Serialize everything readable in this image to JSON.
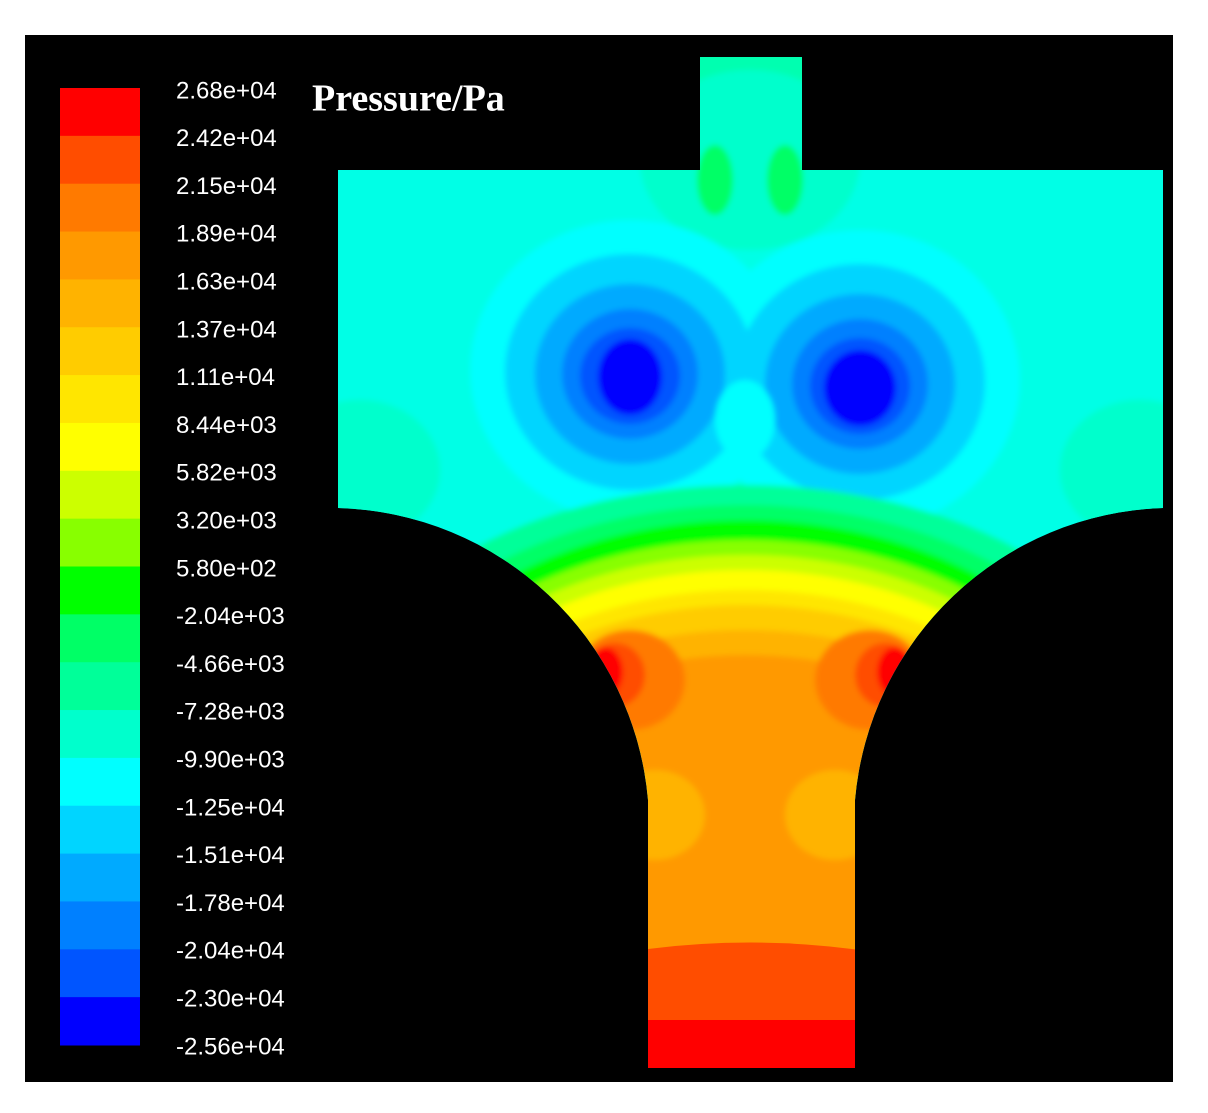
{
  "title": "Pressure/Pa",
  "colorbar": {
    "labels": [
      "2.68e+04",
      "2.42e+04",
      "2.15e+04",
      "1.89e+04",
      "1.63e+04",
      "1.37e+04",
      "1.11e+04",
      "8.44e+03",
      "5.82e+03",
      "3.20e+03",
      "5.80e+02",
      "-2.04e+03",
      "-4.66e+03",
      "-7.28e+03",
      "-9.90e+03",
      "-1.25e+04",
      "-1.51e+04",
      "-1.78e+04",
      "-2.04e+04",
      "-2.30e+04",
      "-2.56e+04"
    ],
    "colors": [
      "#ff0000",
      "#ff4d00",
      "#ff7a00",
      "#ff9900",
      "#ffb300",
      "#ffcc00",
      "#ffe600",
      "#ffff00",
      "#ccff00",
      "#88ff00",
      "#00ff00",
      "#00ff66",
      "#00ff99",
      "#00ffcc",
      "#00ffff",
      "#00d5ff",
      "#00aaff",
      "#0080ff",
      "#0055ff",
      "#0000ff"
    ]
  }
}
